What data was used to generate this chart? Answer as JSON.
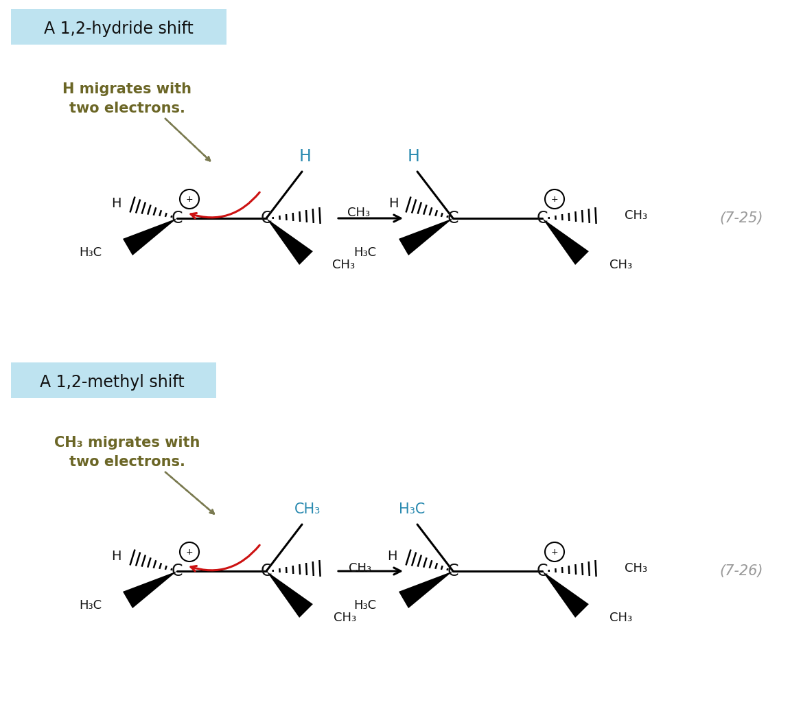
{
  "bg_color": "#ffffff",
  "light_blue_bg": "#bee3f0",
  "title1": "A 1,2-hydride shift",
  "title2": "A 1,2-methyl shift",
  "eq_num1": "(7-25)",
  "eq_num2": "(7-26)",
  "blue": "#2a8ab0",
  "black": "#111111",
  "olive": "#6b6626",
  "red": "#cc1111",
  "gray_dash": "#7a7a50"
}
